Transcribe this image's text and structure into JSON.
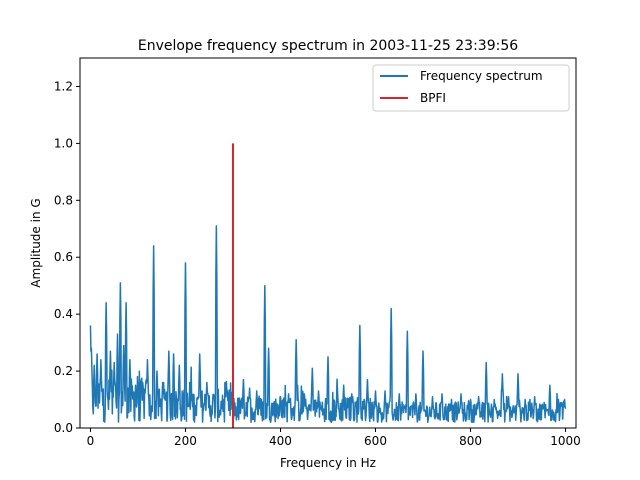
{
  "chart_data": {
    "type": "line",
    "title": "Envelope frequency spectrum in 2003-11-25 23:39:56",
    "xlabel": "Frequency in Hz",
    "ylabel": "Amplitude in G",
    "xlim": [
      -22,
      1022
    ],
    "ylim": [
      0,
      1.3
    ],
    "xticks": [
      0,
      200,
      400,
      600,
      800,
      1000
    ],
    "yticks": [
      0.0,
      0.2,
      0.4,
      0.6,
      0.8,
      1.0,
      1.2
    ],
    "grid": false,
    "legend_position": "top-right",
    "peaks": [
      {
        "x": 0,
        "y": 0.36
      },
      {
        "x": 2,
        "y": 0.28
      },
      {
        "x": 8,
        "y": 0.22
      },
      {
        "x": 14,
        "y": 0.26
      },
      {
        "x": 22,
        "y": 0.24
      },
      {
        "x": 33,
        "y": 0.44
      },
      {
        "x": 42,
        "y": 0.27
      },
      {
        "x": 50,
        "y": 0.23
      },
      {
        "x": 57,
        "y": 0.33
      },
      {
        "x": 63,
        "y": 0.51
      },
      {
        "x": 70,
        "y": 0.29
      },
      {
        "x": 75,
        "y": 0.44
      },
      {
        "x": 83,
        "y": 0.24
      },
      {
        "x": 95,
        "y": 0.15
      },
      {
        "x": 108,
        "y": 0.13
      },
      {
        "x": 120,
        "y": 0.24
      },
      {
        "x": 133,
        "y": 0.64
      },
      {
        "x": 140,
        "y": 0.2
      },
      {
        "x": 152,
        "y": 0.16
      },
      {
        "x": 165,
        "y": 0.27
      },
      {
        "x": 175,
        "y": 0.26
      },
      {
        "x": 187,
        "y": 0.22
      },
      {
        "x": 200,
        "y": 0.58
      },
      {
        "x": 212,
        "y": 0.13
      },
      {
        "x": 230,
        "y": 0.26
      },
      {
        "x": 245,
        "y": 0.16
      },
      {
        "x": 265,
        "y": 0.71
      },
      {
        "x": 285,
        "y": 0.11
      },
      {
        "x": 322,
        "y": 0.17
      },
      {
        "x": 335,
        "y": 0.14
      },
      {
        "x": 350,
        "y": 0.13
      },
      {
        "x": 367,
        "y": 0.5
      },
      {
        "x": 375,
        "y": 0.28
      },
      {
        "x": 400,
        "y": 0.11
      },
      {
        "x": 417,
        "y": 0.12
      },
      {
        "x": 433,
        "y": 0.31
      },
      {
        "x": 450,
        "y": 0.12
      },
      {
        "x": 467,
        "y": 0.21
      },
      {
        "x": 480,
        "y": 0.13
      },
      {
        "x": 500,
        "y": 0.25
      },
      {
        "x": 520,
        "y": 0.13
      },
      {
        "x": 533,
        "y": 0.15
      },
      {
        "x": 550,
        "y": 0.12
      },
      {
        "x": 567,
        "y": 0.36
      },
      {
        "x": 583,
        "y": 0.17
      },
      {
        "x": 600,
        "y": 0.13
      },
      {
        "x": 620,
        "y": 0.13
      },
      {
        "x": 633,
        "y": 0.42
      },
      {
        "x": 650,
        "y": 0.12
      },
      {
        "x": 667,
        "y": 0.34
      },
      {
        "x": 685,
        "y": 0.12
      },
      {
        "x": 700,
        "y": 0.27
      },
      {
        "x": 720,
        "y": 0.11
      },
      {
        "x": 740,
        "y": 0.12
      },
      {
        "x": 760,
        "y": 0.1
      },
      {
        "x": 780,
        "y": 0.12
      },
      {
        "x": 800,
        "y": 0.1
      },
      {
        "x": 817,
        "y": 0.11
      },
      {
        "x": 833,
        "y": 0.23
      },
      {
        "x": 850,
        "y": 0.1
      },
      {
        "x": 867,
        "y": 0.19
      },
      {
        "x": 880,
        "y": 0.11
      },
      {
        "x": 900,
        "y": 0.19
      },
      {
        "x": 915,
        "y": 0.1
      },
      {
        "x": 935,
        "y": 0.11
      },
      {
        "x": 955,
        "y": 0.09
      },
      {
        "x": 967,
        "y": 0.15
      },
      {
        "x": 985,
        "y": 0.1
      },
      {
        "x": 998,
        "y": 0.1
      }
    ],
    "series": [
      {
        "name": "Frequency spectrum",
        "color": "#1f77b4",
        "x_range": [
          0,
          1000
        ]
      },
      {
        "name": "BPFI",
        "color": "#d62728",
        "x": [
          300,
          300
        ],
        "y": [
          0,
          1.0
        ]
      }
    ]
  }
}
